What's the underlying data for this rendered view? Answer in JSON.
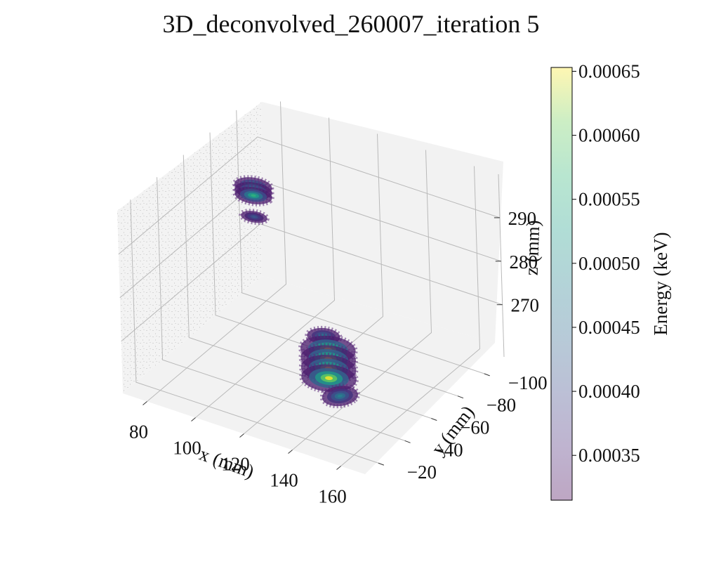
{
  "chart_data": {
    "type": "scatter",
    "projection": "3d",
    "title": "3D_deconvolved_260007_iteration 5",
    "xlabel": "x (mm)",
    "ylabel": "y (mm)",
    "zlabel": "z (mm)",
    "xlim": [
      70,
      170
    ],
    "ylim": [
      -115,
      -10
    ],
    "zlim": [
      258,
      300
    ],
    "x_ticks": [
      "80",
      "100",
      "120",
      "140",
      "160"
    ],
    "y_ticks": [
      "−20",
      "−40",
      "−60",
      "−80",
      "−100"
    ],
    "z_ticks": [
      "270",
      "280",
      "290"
    ],
    "grid": true,
    "colormap": "viridis",
    "alpha": 0.35,
    "colorbar": {
      "label": "Energy (keV)",
      "min": 0.000315,
      "max": 0.000653,
      "ticks": [
        "0.00035",
        "0.00040",
        "0.00045",
        "0.00050",
        "0.00055",
        "0.00060",
        "0.00065"
      ],
      "placement": "right"
    },
    "clusters": [
      {
        "name": "",
        "x": 97,
        "y": -63,
        "z": 296,
        "rx": 7,
        "ry": 6,
        "slices": [
          0.5,
          0.0,
          -0.5
        ],
        "peak": 0.00056
      },
      {
        "name": "",
        "x": 97,
        "y": -63,
        "z": 290,
        "rx": 5,
        "ry": 4,
        "slices": [
          0.0
        ],
        "peak": 0.00042
      },
      {
        "name": "",
        "x": 125,
        "y": -62,
        "z": 268,
        "rx": 6,
        "ry": 6,
        "slices": [
          0.0
        ],
        "peak": 0.00048
      },
      {
        "name": "",
        "x": 125,
        "y": -65,
        "z": 262,
        "rx": 10,
        "ry": 10,
        "slices": [
          1.0,
          0.0,
          -1.0,
          -2.0
        ],
        "peak": 0.00065
      },
      {
        "name": "",
        "x": 143,
        "y": -41,
        "z": 263,
        "rx": 6,
        "ry": 8,
        "slices": [
          0.0
        ],
        "peak": 0.00048
      }
    ]
  }
}
